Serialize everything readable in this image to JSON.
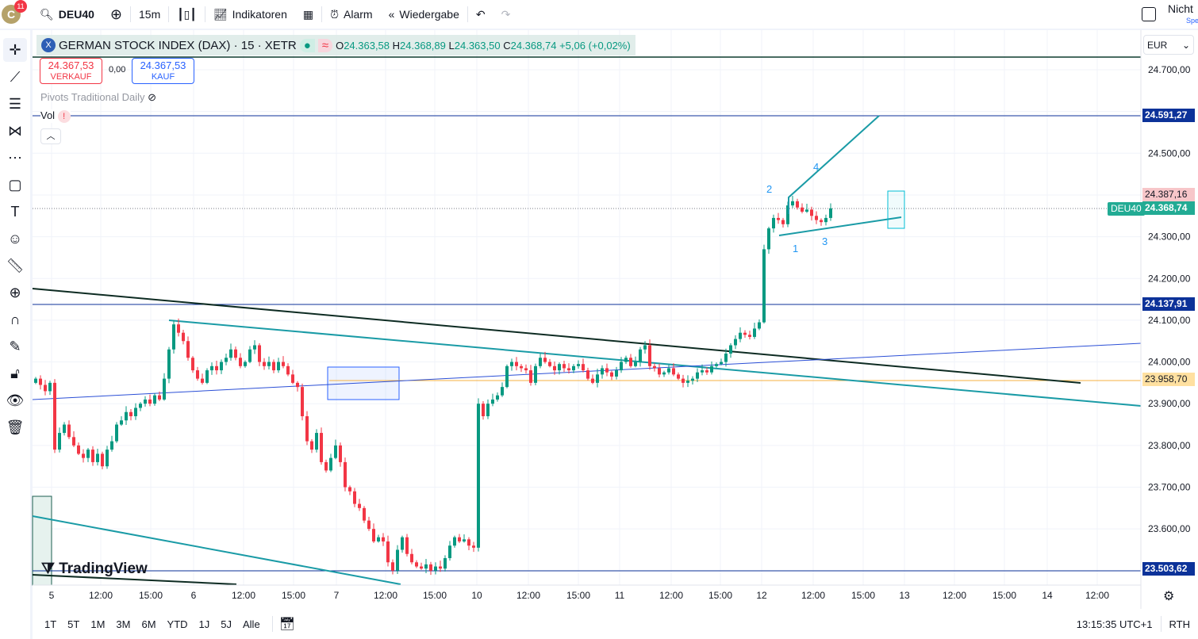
{
  "topbar": {
    "notifications": "11",
    "avatar": "C",
    "symbol": "DEU40",
    "interval": "15m",
    "indicators": "Indikatoren",
    "alarm": "Alarm",
    "replay": "Wiedergabe",
    "right_title": "Nicht",
    "right_sub": "Spe"
  },
  "legend": {
    "title": "GERMAN STOCK INDEX (DAX) · 15 · XETR",
    "o_label": "O",
    "o": "24.363,58",
    "h_label": "H",
    "h": "24.368,89",
    "l_label": "L",
    "l": "24.363,50",
    "c_label": "C",
    "c": "24.368,74",
    "change": "+5,06 (+0,02%)",
    "sell_price": "24.367,53",
    "sell_label": "VERKAUF",
    "spread": "0,00",
    "buy_price": "24.367,53",
    "buy_label": "KAUF",
    "pivots": "Pivots Traditional Daily",
    "vol": "Vol"
  },
  "price_axis": {
    "currency": "EUR",
    "ticks": [
      "24.700,00",
      "24.500,00",
      "24.300,00",
      "24.200,00",
      "24.100,00",
      "24.000,00",
      "23.900,00",
      "23.800,00",
      "23.700,00",
      "23.600,00"
    ],
    "labels": [
      {
        "text": "24.591,27",
        "color": "#0c3299"
      },
      {
        "text": "24.387,16",
        "color": "#f7c6c9"
      },
      {
        "text": "24.368,74",
        "color": "#22ab94"
      },
      {
        "text": "24.137,91",
        "color": "#0c3299"
      },
      {
        "text": "23.958,70",
        "color": "#ffe0a0"
      },
      {
        "text": "23.503,62",
        "color": "#0c3299"
      }
    ],
    "symbol_tag": "DEU40"
  },
  "time_axis": [
    "5",
    "12:00",
    "15:00",
    "6",
    "12:00",
    "15:00",
    "7",
    "12:00",
    "15:00",
    "10",
    "12:00",
    "15:00",
    "11",
    "12:00",
    "15:00",
    "12",
    "12:00",
    "15:00",
    "13",
    "12:00",
    "15:00",
    "14",
    "12:00"
  ],
  "waves": [
    "1",
    "2",
    "3",
    "4"
  ],
  "bottombar": {
    "ranges": [
      "1T",
      "5T",
      "1M",
      "3M",
      "6M",
      "YTD",
      "1J",
      "5J",
      "Alle"
    ],
    "clock": "13:15:35 UTC+1",
    "session": "RTH"
  },
  "logo": "TradingView",
  "chart_data": {
    "type": "candlestick",
    "symbol": "DEU40",
    "interval": "15",
    "ylim": [
      23470,
      24730
    ],
    "closes": [
      23960,
      23945,
      23930,
      23950,
      23790,
      23830,
      23850,
      23820,
      23800,
      23780,
      23770,
      23790,
      23760,
      23780,
      23750,
      23790,
      23810,
      23850,
      23860,
      23880,
      23870,
      23890,
      23900,
      23910,
      23900,
      23920,
      23910,
      23960,
      24030,
      24090,
      24070,
      24050,
      24010,
      23980,
      23960,
      23950,
      23980,
      23990,
      23980,
      24000,
      24010,
      24030,
      24010,
      23990,
      24000,
      24030,
      24040,
      24000,
      23990,
      24000,
      23980,
      24000,
      23990,
      23970,
      23950,
      23940,
      23870,
      23810,
      23790,
      23830,
      23760,
      23740,
      23770,
      23800,
      23760,
      23700,
      23690,
      23660,
      23650,
      23620,
      23600,
      23570,
      23580,
      23570,
      23520,
      23500,
      23550,
      23580,
      23540,
      23520,
      23510,
      23505,
      23515,
      23500,
      23510,
      23505,
      23530,
      23560,
      23580,
      23570,
      23575,
      23560,
      23555,
      23900,
      23870,
      23900,
      23910,
      23920,
      23940,
      23990,
      24000,
      23990,
      23985,
      23980,
      23950,
      23990,
      24010,
      24000,
      23990,
      23980,
      23995,
      23985,
      23980,
      23990,
      23995,
      23980,
      23960,
      23950,
      23970,
      23985,
      23975,
      23965,
      23980,
      24000,
      24010,
      23990,
      24000,
      24030,
      24040,
      23990,
      23985,
      23970,
      23975,
      23985,
      23970,
      23960,
      23950,
      23955,
      23960,
      23975,
      23980,
      23975,
      23990,
      23995,
      24000,
      24020,
      24040,
      24055,
      24070,
      24065,
      24060,
      24080,
      24095,
      24270,
      24320,
      24345,
      24340,
      24330,
      24375,
      24385,
      24370,
      24360,
      24365,
      24350,
      24340,
      24335,
      24345,
      24368
    ],
    "first_open": 23950,
    "up_color": "#089981",
    "down_color": "#f23645"
  }
}
